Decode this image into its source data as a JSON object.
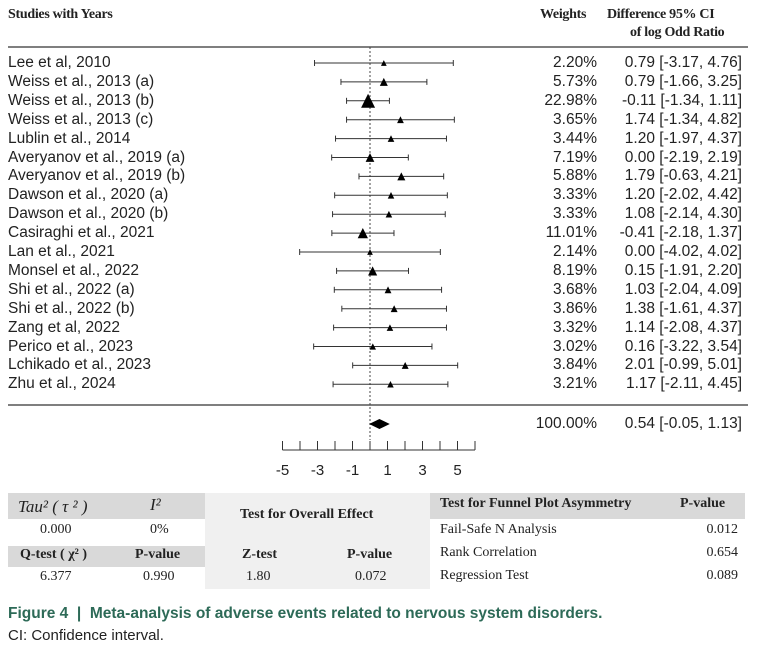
{
  "chart_data": {
    "type": "forest",
    "headers": {
      "study": "Studies with Years",
      "weights": "Weights",
      "ci_line1": "Difference 95% CI",
      "ci_line2": "of log Odd Ratio"
    },
    "xlim": [
      -5,
      6
    ],
    "xticks": [
      -5,
      -4,
      -3,
      -2,
      -1,
      0,
      1,
      2,
      3,
      4,
      5,
      6
    ],
    "xtick_labels": [
      "-5",
      "-3",
      "-1",
      "1",
      "3",
      "5"
    ],
    "xtick_label_values": [
      -5,
      -3,
      -1,
      1,
      3,
      5
    ],
    "reference_line": 0,
    "studies": [
      {
        "name": "Lee  et  al, 2010",
        "weight": "2.20%",
        "w": 2.2,
        "est": 0.79,
        "lo": -3.17,
        "hi": 4.76,
        "ci": "0.79 [-3.17, 4.76]"
      },
      {
        "name": "Weiss et al., 2013 (a)",
        "weight": "5.73%",
        "w": 5.73,
        "est": 0.79,
        "lo": -1.66,
        "hi": 3.25,
        "ci": "0.79 [-1.66, 3.25]"
      },
      {
        "name": "Weiss et al., 2013 (b)",
        "weight": "22.98%",
        "w": 22.98,
        "est": -0.11,
        "lo": -1.34,
        "hi": 1.11,
        "ci": "-0.11 [-1.34, 1.11]"
      },
      {
        "name": "Weiss et al., 2013 (c)",
        "weight": "3.65%",
        "w": 3.65,
        "est": 1.74,
        "lo": -1.34,
        "hi": 4.82,
        "ci": "1.74 [-1.34, 4.82]"
      },
      {
        "name": "Lublin et al., 2014",
        "weight": "3.44%",
        "w": 3.44,
        "est": 1.2,
        "lo": -1.97,
        "hi": 4.37,
        "ci": "1.20 [-1.97, 4.37]"
      },
      {
        "name": "Averyanov et al., 2019 (a)",
        "weight": "7.19%",
        "w": 7.19,
        "est": 0.0,
        "lo": -2.19,
        "hi": 2.19,
        "ci": "0.00 [-2.19, 2.19]"
      },
      {
        "name": "Averyanov et al., 2019 (b)",
        "weight": "5.88%",
        "w": 5.88,
        "est": 1.79,
        "lo": -0.63,
        "hi": 4.21,
        "ci": "1.79 [-0.63, 4.21]"
      },
      {
        "name": "Dawson et al., 2020 (a)",
        "weight": "3.33%",
        "w": 3.33,
        "est": 1.2,
        "lo": -2.02,
        "hi": 4.42,
        "ci": "1.20 [-2.02, 4.42]"
      },
      {
        "name": "Dawson et al., 2020 (b)",
        "weight": "3.33%",
        "w": 3.33,
        "est": 1.08,
        "lo": -2.14,
        "hi": 4.3,
        "ci": "1.08 [-2.14, 4.30]"
      },
      {
        "name": "Casiraghi  et al., 2021",
        "weight": "11.01%",
        "w": 11.01,
        "est": -0.41,
        "lo": -2.18,
        "hi": 1.37,
        "ci": "-0.41 [-2.18, 1.37]"
      },
      {
        "name": "Lan et al., 2021",
        "weight": "2.14%",
        "w": 2.14,
        "est": 0.0,
        "lo": -4.02,
        "hi": 4.02,
        "ci": "0.00 [-4.02, 4.02]"
      },
      {
        "name": "Monsel et al., 2022",
        "weight": "8.19%",
        "w": 8.19,
        "est": 0.15,
        "lo": -1.91,
        "hi": 2.2,
        "ci": "0.15 [-1.91, 2.20]"
      },
      {
        "name": "Shi et al., 2022 (a)",
        "weight": "3.68%",
        "w": 3.68,
        "est": 1.03,
        "lo": -2.04,
        "hi": 4.09,
        "ci": "1.03 [-2.04, 4.09]"
      },
      {
        "name": "Shi et al., 2022 (b)",
        "weight": "3.86%",
        "w": 3.86,
        "est": 1.38,
        "lo": -1.61,
        "hi": 4.37,
        "ci": "1.38 [-1.61, 4.37]"
      },
      {
        "name": "Zang et al, 2022",
        "weight": "3.32%",
        "w": 3.32,
        "est": 1.14,
        "lo": -2.08,
        "hi": 4.37,
        "ci": "1.14 [-2.08, 4.37]"
      },
      {
        "name": "Perico et al., 2023",
        "weight": "3.02%",
        "w": 3.02,
        "est": 0.16,
        "lo": -3.22,
        "hi": 3.54,
        "ci": "0.16 [-3.22, 3.54]"
      },
      {
        "name": "Lchikado et al., 2023",
        "weight": "3.84%",
        "w": 3.84,
        "est": 2.01,
        "lo": -0.99,
        "hi": 5.01,
        "ci": "2.01 [-0.99, 5.01]"
      },
      {
        "name": "Zhu et al., 2024",
        "weight": "3.21%",
        "w": 3.21,
        "est": 1.17,
        "lo": -2.11,
        "hi": 4.45,
        "ci": "1.17 [-2.11, 4.45]"
      }
    ],
    "summary": {
      "weight": "100.00%",
      "est": 0.54,
      "lo": -0.05,
      "hi": 1.13,
      "ci": "0.54 [-0.05, 1.13]"
    }
  },
  "stats": {
    "tau_label": "Tau² ( τ ² )",
    "i2_label": "I²",
    "tau_value": "0.000",
    "i2_value": "0%",
    "q_label": "Q-test ( χ² )",
    "q_p_label": "P-value",
    "q_value": "6.377",
    "q_p_value": "0.990",
    "overall_title": "Test for Overall Effect",
    "z_label": "Z-test",
    "z_p_label": "P-value",
    "z_value": "1.80",
    "z_p_value": "0.072",
    "funnel_title": "Test for Funnel Plot Asymmetry",
    "funnel_p_label": "P-value",
    "funnel_rows": [
      {
        "label": "Fail-Safe N Analysis",
        "p": "0.012"
      },
      {
        "label": "Rank Correlation",
        "p": "0.654"
      },
      {
        "label": "Regression Test",
        "p": "0.089"
      }
    ]
  },
  "caption": {
    "title": "Figure 4  |  Meta-analysis of adverse events related to nervous system disorders.",
    "note": "CI: Confidence interval."
  }
}
